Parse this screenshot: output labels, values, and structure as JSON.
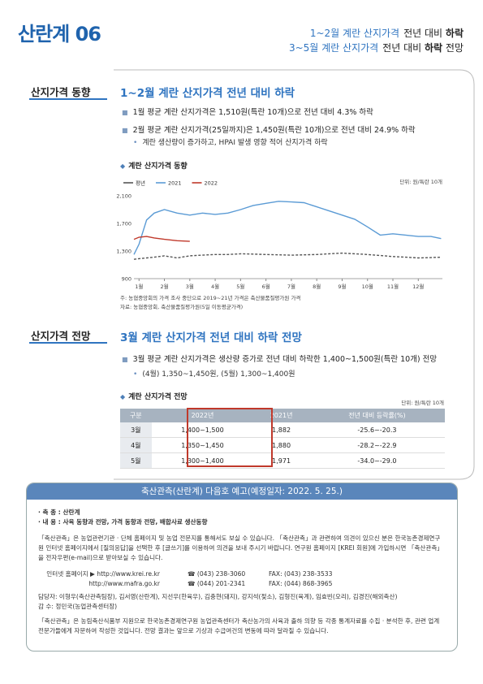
{
  "header": {
    "title": "산란계 06",
    "summary": [
      {
        "lead": "1~2월 계란 산지가격",
        "rest": "전년 대비",
        "bold": "하락"
      },
      {
        "lead": "3~5월 계란 산지가격",
        "rest": "전년 대비",
        "bold": "하락",
        "tail": "전망"
      }
    ]
  },
  "section1": {
    "label": "산지가격 동향",
    "title": "1~2월 계란 산지가격 전년 대비 하락",
    "bullets": [
      "1월 평균 계란 산지가격은 1,510원(특란 10개)으로 전년 대비 4.3% 하락",
      "2월 평균 계란 산지가격(25일까지)은 1,450원(특란 10개)으로 전년 대비 24.9% 하락"
    ],
    "sub_bullet": "계란 생산량이 증가하고, HPAI 발생 영향 적어 산지가격 하락",
    "notes": [
      "주: 농협중앙회의 가격 조사 중단으로 2019~21년 가격은 축산물품질평가원 가격",
      "자료: 농협중앙회, 축산물품질평가원(5일 이동평균가격)"
    ]
  },
  "chart_data": {
    "type": "line",
    "title": "계란 산지가격 동향",
    "unit": "단위: 원/특란 10개",
    "x": [
      0.8,
      1,
      1.3,
      1.6,
      2,
      2.5,
      3,
      3.5,
      4,
      4.5,
      5,
      5.5,
      6,
      6.5,
      7,
      7.5,
      8,
      8.5,
      9,
      9.5,
      10,
      10.5,
      11,
      11.5,
      12,
      12.5,
      12.9
    ],
    "xlim": [
      0.8,
      12.95
    ],
    "xticks": [
      {
        "value": 1,
        "label": "1월"
      },
      {
        "value": 2,
        "label": "2월"
      },
      {
        "value": 3,
        "label": "3월"
      },
      {
        "value": 4,
        "label": "4월"
      },
      {
        "value": 5,
        "label": "5월"
      },
      {
        "value": 6,
        "label": "6월"
      },
      {
        "value": 7,
        "label": "7월"
      },
      {
        "value": 8,
        "label": "8월"
      },
      {
        "value": 9,
        "label": "9월"
      },
      {
        "value": 10,
        "label": "10월"
      },
      {
        "value": 11,
        "label": "11월"
      },
      {
        "value": 12,
        "label": "12월"
      }
    ],
    "ylim": [
      900,
      2100
    ],
    "yticks": [
      900,
      {
        "value": 1300,
        "label": "1,300"
      },
      {
        "value": 1700,
        "label": "1,700"
      },
      {
        "value": 2100,
        "label": "2,100"
      }
    ],
    "grid": false,
    "series": [
      {
        "name": "평년",
        "color": "#555555",
        "dashed": true,
        "values": [
          1180,
          1190,
          1200,
          1210,
          1230,
          1200,
          1230,
          1240,
          1250,
          1250,
          1260,
          1255,
          1250,
          1245,
          1240,
          1245,
          1250,
          1260,
          1270,
          1260,
          1250,
          1235,
          1220,
          1210,
          1200,
          1205,
          1210
        ]
      },
      {
        "name": "2021",
        "color": "#5b9bd5",
        "dashed": false,
        "values": [
          1250,
          1400,
          1750,
          1850,
          1900,
          1850,
          1820,
          1850,
          1830,
          1850,
          1900,
          1960,
          1990,
          2020,
          2010,
          2000,
          1940,
          1880,
          1820,
          1760,
          1650,
          1530,
          1550,
          1530,
          1510,
          1510,
          1480
        ]
      },
      {
        "name": "2022",
        "color": "#c0392b",
        "dashed": false,
        "values": [
          1470,
          1500,
          1510,
          1490,
          1470,
          1450,
          1440,
          null,
          null,
          null,
          null,
          null,
          null,
          null,
          null,
          null,
          null,
          null,
          null,
          null,
          null,
          null,
          null,
          null,
          null,
          null,
          null
        ]
      }
    ]
  },
  "section2": {
    "label": "산지가격 전망",
    "title": "3월 계란 산지가격 전년 대비 하락 전망",
    "bullet": "3월 평균 계란 산지가격은 생산량 증가로 전년 대비 하락한 1,400~1,500원(특란 10개) 전망",
    "sub_bullet": "(4월) 1,350~1,450원, (5월) 1,300~1,400원",
    "table": {
      "title": "계란 산지가격 전망",
      "unit": "단위: 원/특란 10개",
      "headers": [
        "구분",
        "2022년",
        "2021년",
        "전년 대비 등락률(%)"
      ],
      "rows": [
        [
          "3월",
          "1,400~1,500",
          "1,882",
          "-25.6~-20.3"
        ],
        [
          "4월",
          "1,350~1,450",
          "1,880",
          "-28.2~-22.9"
        ],
        [
          "5월",
          "1,300~1,400",
          "1,971",
          "-34.0~-29.0"
        ]
      ]
    }
  },
  "notice": {
    "title": "축산관측(산란계) 다음호 예고(예정일자: 2022. 5. 25.)",
    "items": [
      "· 축 종 : 산란계",
      "· 내 용 : 사육 동향과 전망, 가격 동향과 전망, 배합사료 생산동향"
    ],
    "paragraph": "「축산관측」은 농업관련기관 · 단체 홈페이지 및 농업 전문지를 통해서도 보실 수 있습니다. 「축산관측」과 관련하여 의견이 있으신 분은 한국농촌경제연구원 인터넷 홈페이지에서 [질의응답]을 선택한 후 [글쓰기]를 이용하여 의견을 보내 주시기 바랍니다. 연구원 홈페이지 [KREI 회원]에 가입하시면 「축산관측」을 전자우편(e-mail)으로 받아보실 수 있습니다.",
    "contacts": [
      [
        "인터넷 홈페이지 ▶ http://www.krei.re.kr",
        "☎ (043) 238-3060",
        "FAX: (043) 238-3533"
      ],
      [
        "http://www.mafra.go.kr",
        "☎ (044) 201-2341",
        "FAX: (044) 868-3965"
      ]
    ],
    "staff": "담당자: 이형우(축산관측팀장), 김서영(산란계), 지선우(한육우), 김충현(돼지), 강지석(젖소), 김형진(육계), 임효빈(오리), 김경진(해외축산)",
    "supervisor": "감 수: 정민국(농업관측센터장)",
    "disclaimer": "「축산관측」은 농림축산식품부 지원으로 한국농촌경제연구원 농업관측센터가 축산농가의 사육과 출하 의향 등 각종 통계자료를 수집 · 분석한 후, 관련 업계 전문가들에게 자문하여 작성한 것입니다. 전망 결과는 앞으로 기상과 수급여건의 변동에 따라 달라질 수 있습니다."
  }
}
